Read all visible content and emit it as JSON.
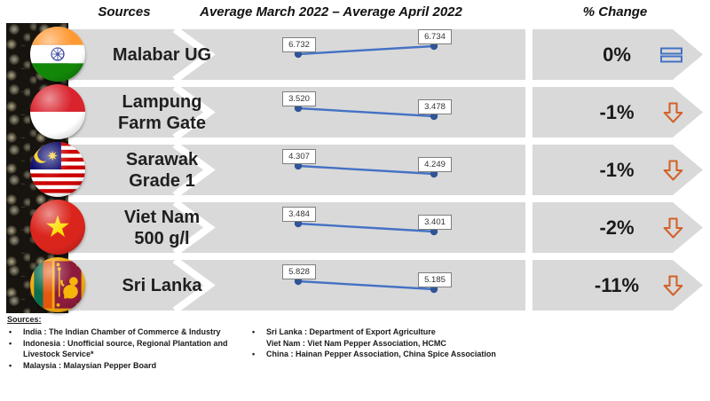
{
  "header": {
    "sources": "Sources",
    "period": "Average March 2022 – Average April 2022",
    "change": "% Change"
  },
  "rows": [
    {
      "label": "Malabar UG",
      "label2": "",
      "flag": "india",
      "march": "6.732",
      "april": "6.734",
      "change": "0%",
      "trend": "flat"
    },
    {
      "label": "Lampung",
      "label2": "Farm Gate",
      "flag": "indonesia",
      "march": "3.520",
      "april": "3.478",
      "change": "-1%",
      "trend": "down"
    },
    {
      "label": "Sarawak",
      "label2": "Grade 1",
      "flag": "malaysia",
      "march": "4.307",
      "april": "4.249",
      "change": "-1%",
      "trend": "down"
    },
    {
      "label": "Viet Nam",
      "label2": "500 g/l",
      "flag": "vietnam",
      "march": "3.484",
      "april": "3.401",
      "change": "-2%",
      "trend": "down"
    },
    {
      "label": "Sri Lanka",
      "label2": "",
      "flag": "srilanka",
      "march": "5.828",
      "april": "5.185",
      "change": "-11%",
      "trend": "down"
    }
  ],
  "icons": {
    "no_change": "equal-icon",
    "decrease": "block-down-arrow-icon"
  },
  "colors": {
    "banner_gray": "#d9d9d9",
    "line_blue": "#4472c4",
    "dot_blue": "#2f5597",
    "arrow_orange": "#d2622a",
    "text_dark": "#1a1a1a"
  },
  "footer": {
    "heading": "Sources:",
    "left": [
      {
        "bullet": "•",
        "text": "India : The Indian Chamber of Commerce & Industry"
      },
      {
        "bullet": "•",
        "text": "Indonesia : Unofficial source, Regional Plantation and Livestock Service*"
      },
      {
        "bullet": "•",
        "text": "Malaysia : Malaysian Pepper Board"
      }
    ],
    "right": [
      {
        "bullet": "•",
        "text": "Sri Lanka : Department of Export Agriculture"
      },
      {
        "bullet": "",
        "text": "Viet Nam : Viet Nam Pepper Association, HCMC"
      },
      {
        "bullet": "•",
        "text": "China : Hainan Pepper Association, China Spice Association"
      }
    ]
  },
  "chart_data": {
    "type": "line",
    "x": [
      "Average March 2022",
      "Average April 2022"
    ],
    "series": [
      {
        "name": "Malabar UG",
        "values": [
          6.732,
          6.734
        ],
        "pct_change": "0%"
      },
      {
        "name": "Lampung Farm Gate",
        "values": [
          3.52,
          3.478
        ],
        "pct_change": "-1%"
      },
      {
        "name": "Sarawak Grade 1",
        "values": [
          4.307,
          4.249
        ],
        "pct_change": "-1%"
      },
      {
        "name": "Viet Nam 500 g/l",
        "values": [
          3.484,
          3.401
        ],
        "pct_change": "-2%"
      },
      {
        "name": "Sri Lanka",
        "values": [
          5.828,
          5.185
        ],
        "pct_change": "-11%"
      }
    ],
    "title": "Average March 2022 – Average April 2022",
    "legend_position": "none",
    "grid": false
  }
}
